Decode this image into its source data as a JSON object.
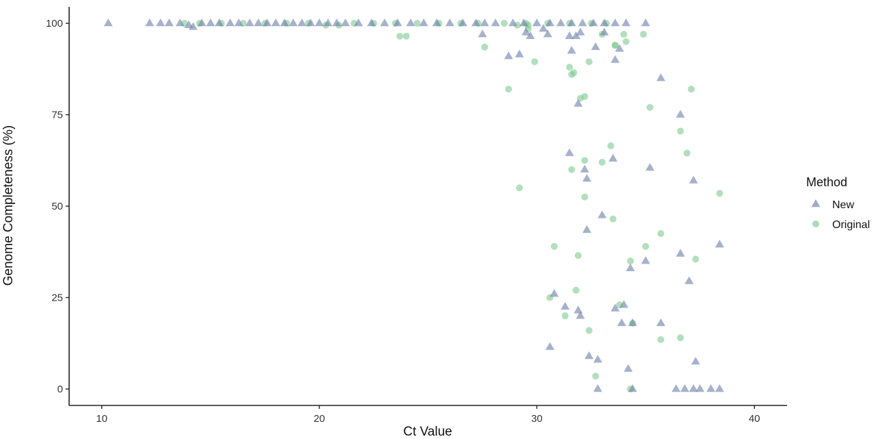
{
  "chart_data": {
    "type": "scatter",
    "title": "",
    "xlabel": "Ct Value",
    "ylabel": "Genome Completeness (%)",
    "xlim": [
      8.5,
      41.5
    ],
    "ylim": [
      -4.5,
      104.5
    ],
    "xticks": [
      10,
      20,
      30,
      40
    ],
    "yticks": [
      0,
      25,
      50,
      75,
      100
    ],
    "grid": false,
    "legend": {
      "title": "Method",
      "position": "right"
    },
    "series": [
      {
        "name": "New",
        "marker": "triangle",
        "color": "#6a7fa8",
        "x": [
          10.3,
          12.2,
          12.7,
          13.1,
          13.6,
          14.0,
          14.2,
          14.6,
          15.0,
          15.4,
          15.9,
          16.3,
          16.8,
          17.2,
          17.6,
          18.0,
          18.4,
          18.8,
          19.2,
          19.6,
          20.0,
          20.4,
          20.8,
          21.2,
          21.8,
          22.4,
          23.0,
          23.6,
          24.2,
          24.8,
          25.4,
          26.0,
          26.6,
          27.2,
          27.6,
          28.1,
          28.9,
          29.4,
          30.0,
          30.6,
          31.1,
          31.6,
          32.1,
          32.6,
          33.1,
          33.6,
          34.1,
          35.0,
          27.5,
          28.7,
          29.2,
          29.5,
          29.7,
          30.3,
          30.5,
          31.6,
          31.8,
          32.0,
          31.5,
          32.7,
          33.1,
          33.6,
          33.8,
          35.7,
          36.6,
          31.5,
          32.2,
          33.5,
          35.2,
          32.3,
          37.2,
          33.0,
          32.3,
          38.4,
          35.0,
          36.6,
          34.3,
          37.0,
          30.8,
          31.3,
          31.9,
          32.0,
          33.6,
          33.9,
          34.0,
          34.4,
          35.7,
          30.6,
          32.4,
          32.8,
          34.2,
          37.3,
          32.8,
          34.4,
          36.4,
          36.8,
          37.2,
          37.5,
          38.0,
          38.4,
          31.9
        ],
        "y": [
          100,
          100,
          100,
          100,
          100,
          99.5,
          99,
          100,
          100,
          100,
          100,
          100,
          100,
          100,
          100,
          100,
          100,
          100,
          100,
          100,
          100,
          100,
          100,
          100,
          100,
          100,
          100,
          100,
          100,
          100,
          100,
          100,
          100,
          100,
          100,
          100,
          100,
          100,
          100,
          100,
          100,
          100,
          100,
          100,
          100,
          100,
          100,
          100,
          97,
          91,
          91.5,
          97.5,
          96.5,
          98.5,
          97,
          92.5,
          96.5,
          97.5,
          96.5,
          93.5,
          97.5,
          90,
          93,
          85,
          75,
          64.5,
          60,
          63,
          60.5,
          57.5,
          57,
          47.5,
          43.5,
          39.5,
          35,
          37,
          33,
          29.5,
          26,
          22.5,
          21.5,
          20,
          22,
          18,
          23,
          18,
          18,
          11.5,
          9,
          8,
          5.5,
          7.5,
          0,
          0,
          0,
          0,
          0,
          0,
          0,
          0,
          78
        ]
      },
      {
        "name": "Original",
        "marker": "circle",
        "color": "#7fc98f",
        "x": [
          13.8,
          14.5,
          15.5,
          16.5,
          17.5,
          18.5,
          19.5,
          20.3,
          20.9,
          21.6,
          22.5,
          23.5,
          24.5,
          25.5,
          26.5,
          27.3,
          28.5,
          29.5,
          30.5,
          31.5,
          32.5,
          33.2,
          23.7,
          24.0,
          27.6,
          29.1,
          29.6,
          29.9,
          33.0,
          33.6,
          34.0,
          34.9,
          33.6,
          34.1,
          31.5,
          31.7,
          31.6,
          32.4,
          29.6,
          28.7,
          32.2,
          32.0,
          37.1,
          35.2,
          36.6,
          33.4,
          36.9,
          33.0,
          31.6,
          32.2,
          29.2,
          32.2,
          38.4,
          33.5,
          35.7,
          30.8,
          35.0,
          31.9,
          34.3,
          37.3,
          30.6,
          31.8,
          33.8,
          31.3,
          34.4,
          32.4,
          35.7,
          36.6,
          32.7,
          34.3
        ],
        "y": [
          100,
          100,
          100,
          100,
          100,
          100,
          100,
          99.5,
          99.5,
          100,
          100,
          100,
          100,
          100,
          100,
          100,
          100,
          100,
          100,
          100,
          100,
          100,
          96.5,
          96.5,
          93.5,
          99.5,
          99.5,
          89.5,
          97,
          94,
          97,
          97,
          94,
          95,
          88,
          86.5,
          86,
          89.5,
          98.5,
          82,
          80,
          79.5,
          82,
          77,
          70.5,
          66.5,
          64.5,
          62,
          60,
          62.5,
          55,
          52.5,
          53.5,
          46.5,
          42.5,
          39,
          39,
          36.5,
          35,
          35.5,
          25,
          27,
          23,
          20,
          18,
          16,
          13.5,
          14,
          3.5,
          0
        ]
      }
    ]
  }
}
